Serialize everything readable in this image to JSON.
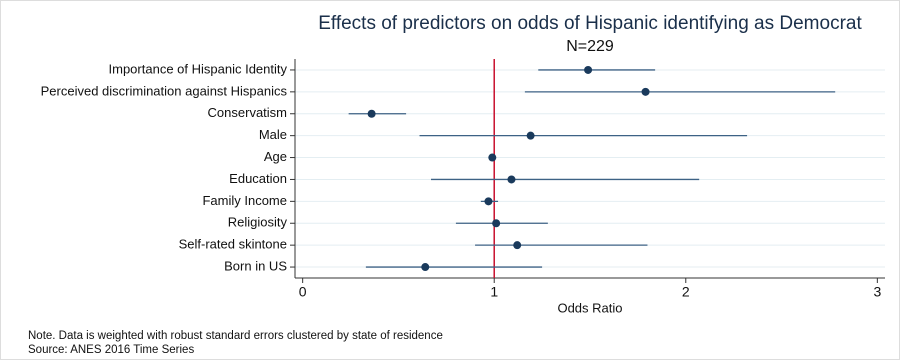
{
  "chart_data": {
    "type": "forest",
    "title": "Effects of predictors on odds of Hispanic identifying as Democrat",
    "subtitle": "N=229",
    "x_label": "Odds Ratio",
    "notes": [
      "Note. Data is weighted with robust standard errors clustered by state of residence",
      "Source: ANES 2016 Time Series"
    ],
    "categories": [
      "Importance of Hispanic Identity",
      "Perceived discrimination against Hispanics",
      "Conservatism",
      "Male",
      "Age",
      "Education",
      "Family Income",
      "Religiosity",
      "Self-rated skintone",
      "Born in US"
    ],
    "estimates": [
      1.49,
      1.79,
      0.36,
      1.19,
      0.99,
      1.09,
      0.97,
      1.01,
      1.12,
      0.64
    ],
    "ci_low": [
      1.23,
      1.16,
      0.24,
      0.61,
      0.98,
      0.67,
      0.93,
      0.8,
      0.9,
      0.33
    ],
    "ci_high": [
      1.84,
      2.78,
      0.54,
      2.32,
      1.0,
      2.07,
      1.02,
      1.28,
      1.8,
      1.25
    ],
    "point_color": "#1a3a5c",
    "ci_color": "#3d6285",
    "ref_line": 1,
    "ref_color": "#c8102e",
    "xlim": [
      -0.04,
      3.04
    ],
    "xticks": [
      0,
      1,
      2,
      3
    ]
  }
}
